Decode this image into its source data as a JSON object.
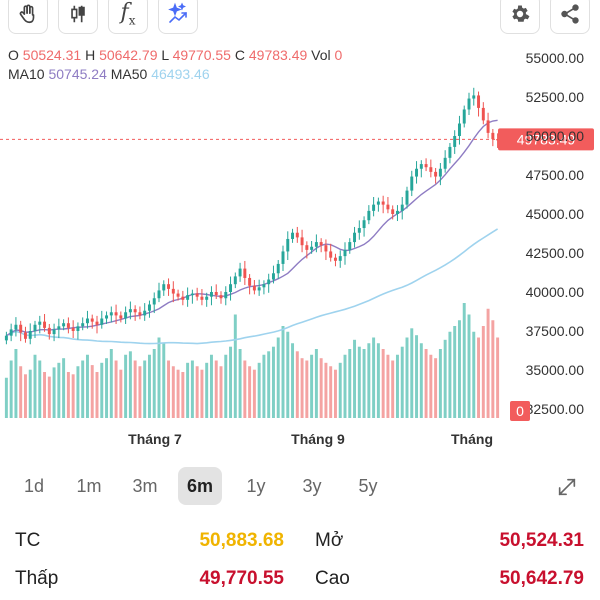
{
  "toolbar": {
    "icons": [
      "hand-icon",
      "candlestick-icon",
      "function-icon",
      "sparkle-icon",
      "gear-icon",
      "share-icon"
    ],
    "fx_label": "f",
    "fx_sub": "x"
  },
  "ohlc": {
    "o_label": "O",
    "o_value": "50524.31",
    "h_label": "H",
    "h_value": "50642.79",
    "l_label": "L",
    "l_value": "49770.55",
    "c_label": "C",
    "c_value": "49783.49",
    "vol_label": "Vol",
    "vol_value": "0"
  },
  "ma": {
    "ma10_label": "MA10",
    "ma10_value": "50745.24",
    "ma50_label": "MA50",
    "ma50_value": "46493.46"
  },
  "chart_data": {
    "type": "candlestick",
    "y_ticks": [
      "55000.00",
      "52500.00",
      "50000.00",
      "47500.00",
      "45000.00",
      "42500.00",
      "40000.00",
      "37500.00",
      "35000.00",
      "32500.00"
    ],
    "y_tick_values": [
      55000,
      52500,
      50000,
      47500,
      45000,
      42500,
      40000,
      37500,
      35000,
      32500
    ],
    "ylim": [
      32000,
      56000
    ],
    "x_labels": [
      "Tháng 7",
      "Tháng 9",
      "Tháng"
    ],
    "current_price_label": "49783.49",
    "volume_badge": "0",
    "close": [
      37200,
      37600,
      37900,
      37400,
      37000,
      37500,
      37900,
      38100,
      37700,
      37300,
      37600,
      37800,
      38000,
      37700,
      37500,
      37800,
      38000,
      38300,
      38100,
      37900,
      38300,
      38500,
      38700,
      38500,
      38300,
      38700,
      38900,
      38700,
      38500,
      38800,
      39200,
      39600,
      40100,
      40500,
      40200,
      39900,
      39700,
      39500,
      39800,
      39900,
      39700,
      39500,
      39700,
      40000,
      39800,
      39600,
      40000,
      40500,
      41000,
      41500,
      40900,
      40400,
      40100,
      40300,
      40500,
      40800,
      41200,
      41800,
      42600,
      43400,
      43800,
      43500,
      43000,
      42700,
      42900,
      43200,
      43000,
      42600,
      42200,
      42000,
      42300,
      42700,
      43200,
      43800,
      44100,
      44600,
      45200,
      45600,
      45800,
      45600,
      45300,
      45000,
      45200,
      45600,
      46500,
      47400,
      47900,
      48200,
      48000,
      47700,
      47400,
      47900,
      48600,
      49300,
      50000,
      50800,
      51700,
      52400,
      52600,
      51800,
      51000,
      50200,
      49800,
      49783
    ],
    "volume_rel": [
      0.35,
      0.5,
      0.6,
      0.45,
      0.38,
      0.42,
      0.55,
      0.5,
      0.4,
      0.36,
      0.44,
      0.48,
      0.52,
      0.4,
      0.38,
      0.45,
      0.5,
      0.55,
      0.46,
      0.4,
      0.48,
      0.52,
      0.6,
      0.5,
      0.42,
      0.55,
      0.58,
      0.5,
      0.45,
      0.5,
      0.55,
      0.6,
      0.7,
      0.65,
      0.5,
      0.45,
      0.42,
      0.4,
      0.48,
      0.5,
      0.45,
      0.42,
      0.48,
      0.55,
      0.5,
      0.45,
      0.55,
      0.62,
      0.9,
      0.6,
      0.5,
      0.45,
      0.42,
      0.48,
      0.55,
      0.58,
      0.62,
      0.7,
      0.8,
      0.75,
      0.65,
      0.58,
      0.52,
      0.5,
      0.55,
      0.6,
      0.52,
      0.48,
      0.45,
      0.42,
      0.48,
      0.55,
      0.6,
      0.68,
      0.62,
      0.6,
      0.65,
      0.7,
      0.65,
      0.6,
      0.55,
      0.5,
      0.55,
      0.62,
      0.7,
      0.78,
      0.72,
      0.65,
      0.6,
      0.55,
      0.52,
      0.6,
      0.68,
      0.75,
      0.8,
      0.85,
      1.0,
      0.9,
      0.75,
      0.7,
      0.8,
      0.95,
      0.85,
      0.7
    ]
  },
  "periods": {
    "items": [
      "1d",
      "1m",
      "3m",
      "6m",
      "1y",
      "3y",
      "5y"
    ],
    "active": "6m"
  },
  "stats": {
    "tc_label": "TC",
    "tc_value": "50,883.68",
    "mo_label": "Mở",
    "mo_value": "50,524.31",
    "thap_label": "Thấp",
    "thap_value": "49,770.55",
    "cao_label": "Cao",
    "cao_value": "50,642.79"
  },
  "colors": {
    "up": "#26a69a",
    "down": "#ef5350",
    "ma10": "#8e7cc3",
    "ma50": "#9fd3ee",
    "tc": "#f0b400",
    "red_value": "#c8102e",
    "price_tag": "#f25c5c"
  }
}
